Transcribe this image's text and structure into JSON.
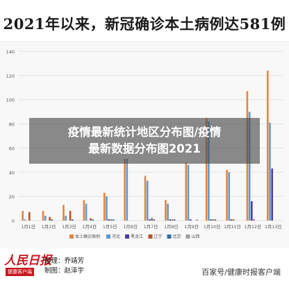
{
  "headline": "2021年以来，新冠确诊本土病例达581例",
  "overlay": {
    "line1": "疫情最新统计地区分布图/疫情",
    "line2": "最新数据分布图2021"
  },
  "footer": {
    "logo_main": "人民日报",
    "logo_sub": "健康客户端",
    "editor": "整理：乔靖芳",
    "producer": "制图：赵泽宇",
    "watermark": "百家号/健康时报客户端"
  },
  "colors": {
    "bg": "#f8f8f8",
    "grid": "#e2e2e2",
    "axis_text": "#555555",
    "series": [
      "#e8843d",
      "#5b9bd5",
      "#4a3f9e",
      "#b5532a",
      "#2f6ea4",
      "#9e9e9e"
    ]
  },
  "chart_data": {
    "type": "bar",
    "categories": [
      "1月1日",
      "1月2日",
      "1月3日",
      "1月4日",
      "1月5日",
      "1月6日",
      "1月7日",
      "1月8日",
      "1月9日",
      "1月10日",
      "1月11日",
      "1月12日",
      "1月13日"
    ],
    "ylim": [
      0,
      140
    ],
    "yticks": [
      0,
      20,
      40,
      60,
      80,
      100,
      120,
      140
    ],
    "grid": true,
    "legend_position": "bottom",
    "series": [
      {
        "name": "本土确诊病例",
        "values": [
          8,
          8,
          13,
          17,
          23,
          51,
          37,
          17,
          48,
          85,
          42,
          107,
          124
        ]
      },
      {
        "name": "河北",
        "values": [
          1,
          4,
          4,
          14,
          20,
          51,
          33,
          14,
          46,
          82,
          40,
          90,
          81
        ]
      },
      {
        "name": "黑龙江",
        "values": [
          0,
          0,
          0,
          0,
          1,
          0,
          1,
          1,
          1,
          1,
          1,
          16,
          43
        ]
      },
      {
        "name": "辽宁",
        "values": [
          7,
          3,
          8,
          2,
          1,
          0,
          2,
          1,
          0,
          1,
          1,
          1,
          0
        ]
      },
      {
        "name": "北京",
        "values": [
          0,
          1,
          1,
          1,
          1,
          0,
          1,
          1,
          0,
          1,
          0,
          0,
          0
        ]
      },
      {
        "name": "山西",
        "values": [
          0,
          0,
          0,
          0,
          0,
          0,
          0,
          0,
          1,
          0,
          0,
          0,
          0
        ]
      }
    ]
  }
}
